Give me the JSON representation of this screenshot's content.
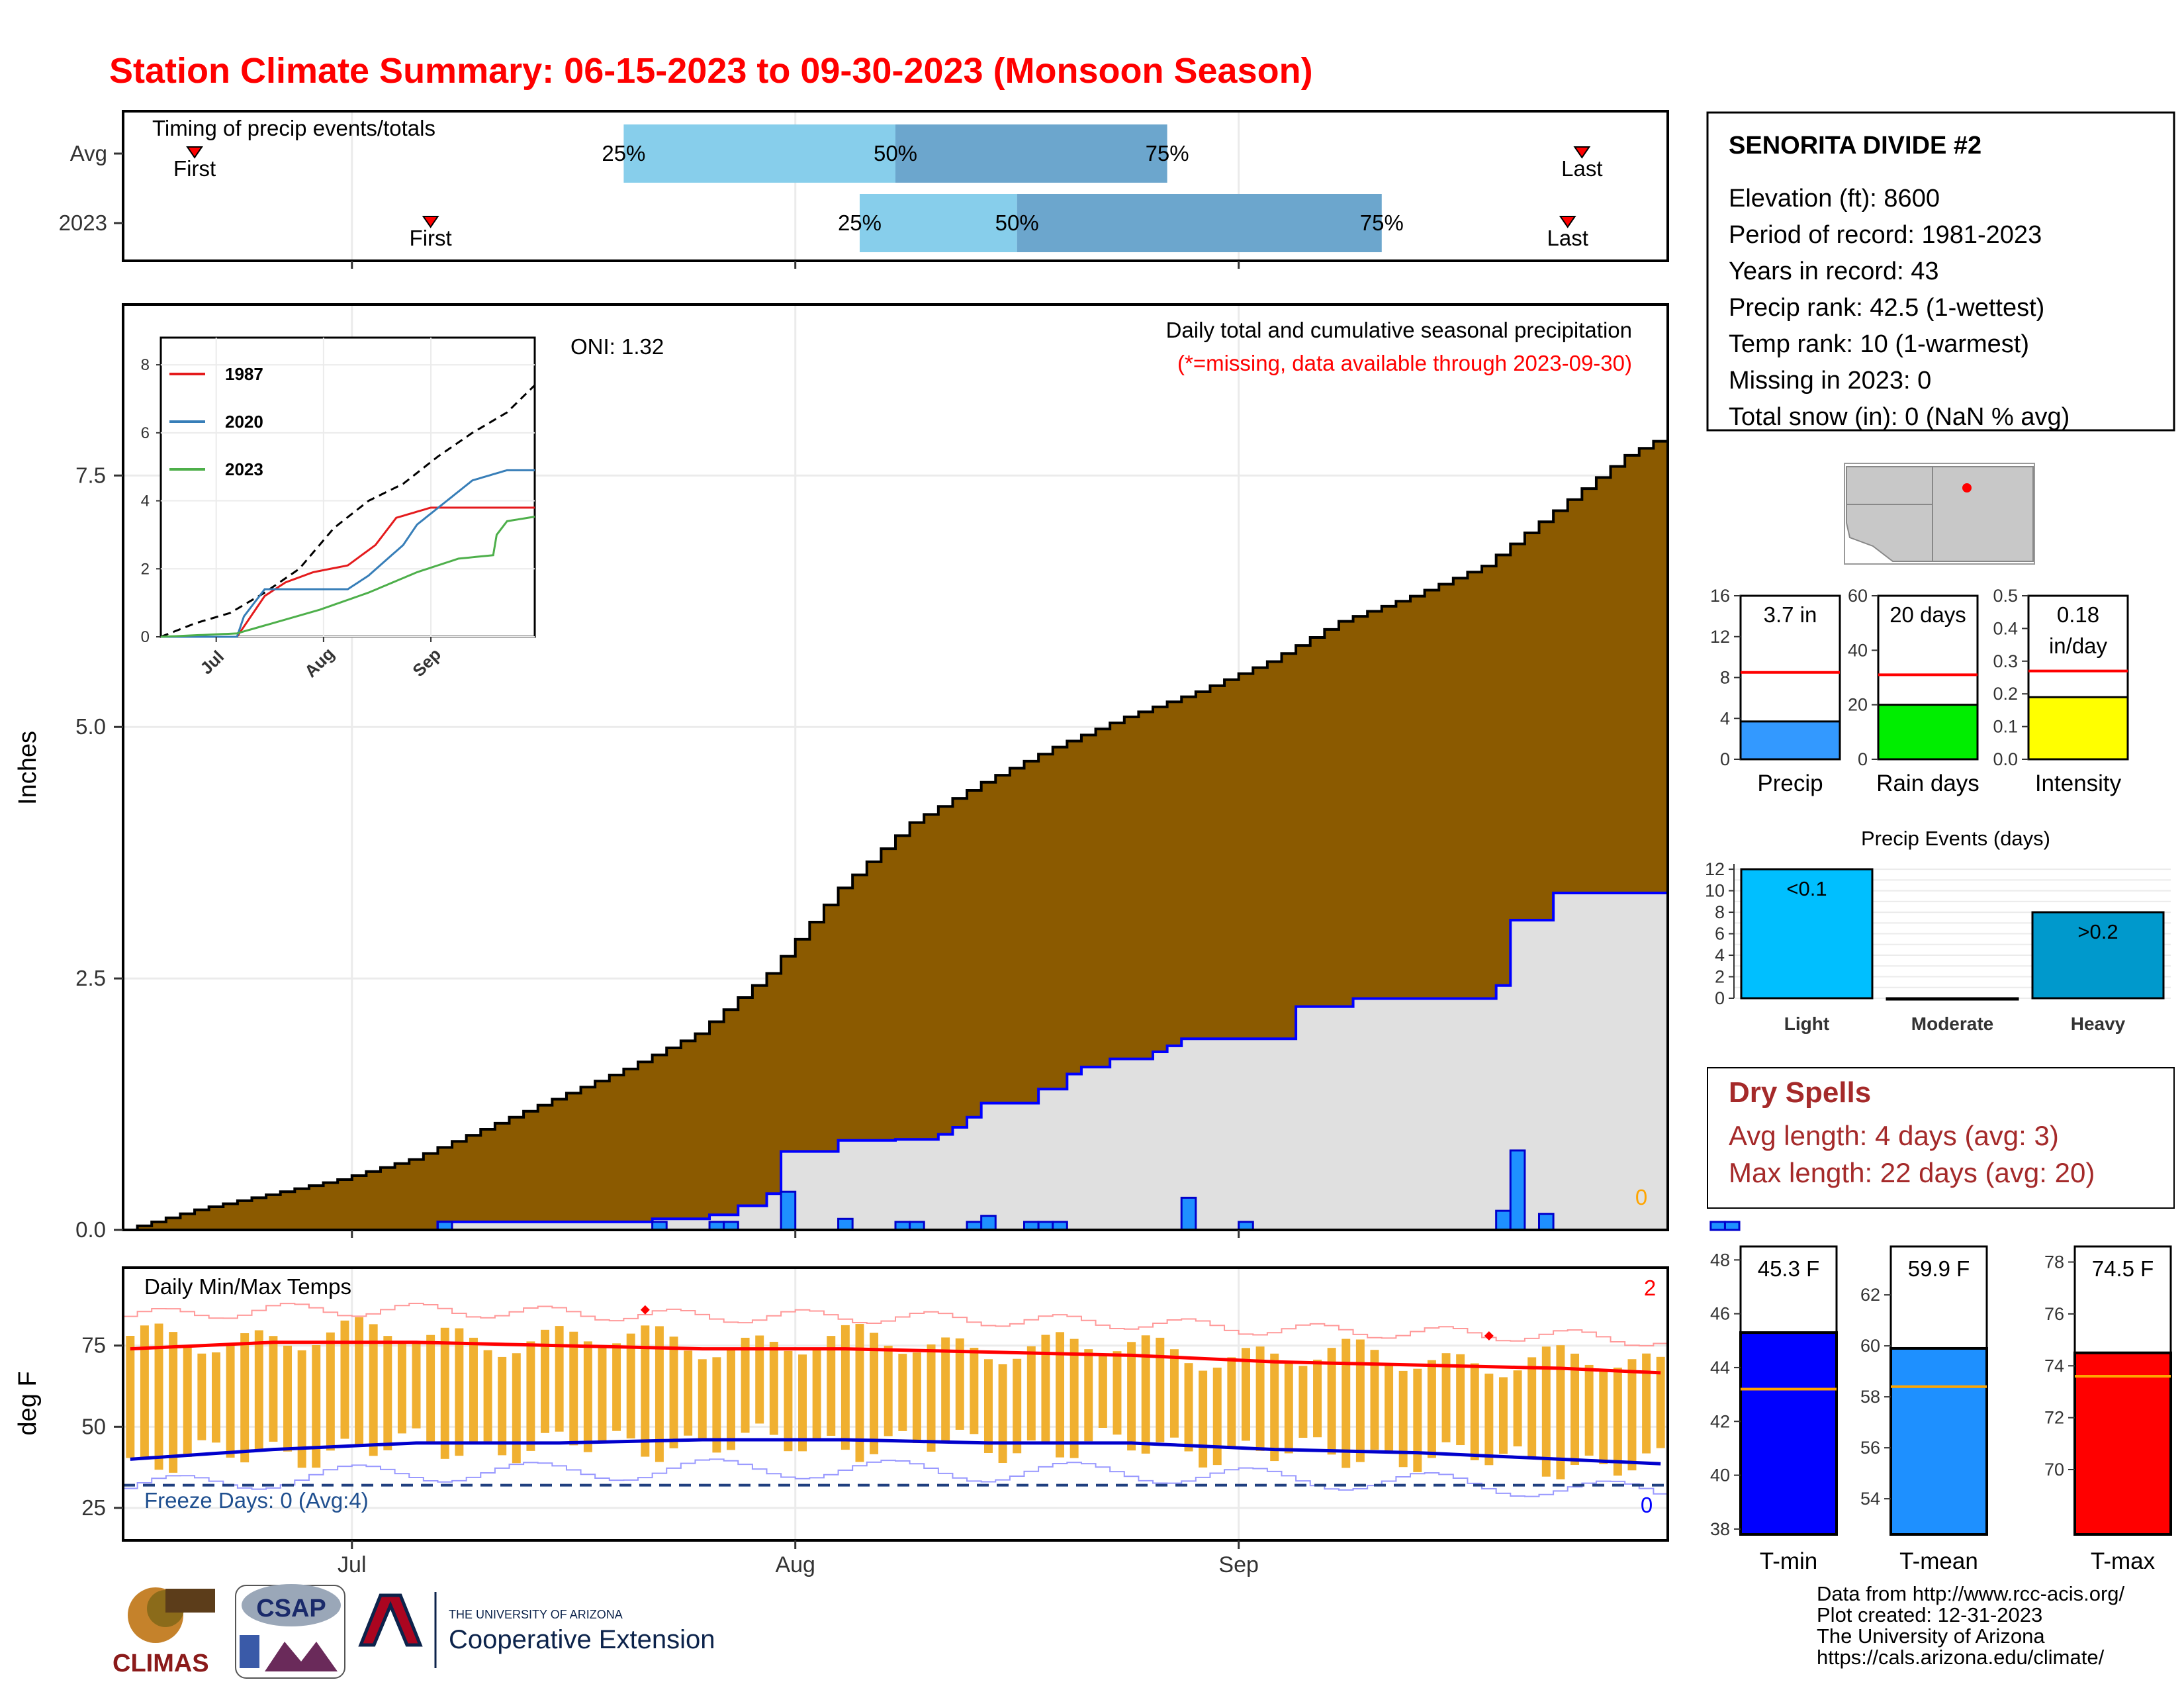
{
  "title": "Station Climate Summary: 06-15-2023 to 09-30-2023 (Monsoon Season)",
  "timing_panel": {
    "label": "Timing of precip events/totals",
    "rows": [
      {
        "name": "Avg",
        "first_label": "First",
        "last_label": "Last",
        "p25": "25%",
        "p50": "50%",
        "p75": "75%",
        "first_day": 5,
        "last_day": 102,
        "p25_day": 35,
        "p50_day": 54,
        "p75_day": 73
      },
      {
        "name": "2023",
        "first_label": "First",
        "last_label": "Last",
        "p25": "25%",
        "p50": "50%",
        "p75": "75%",
        "first_day": 21.5,
        "last_day": 101,
        "p25_day": 51.5,
        "p50_day": 62.5,
        "p75_day": 88
      }
    ]
  },
  "precip_panel": {
    "ylabel": "Inches",
    "annotation_title": "Daily total and cumulative seasonal precipitation",
    "annotation_missing": "(*=missing, data available through 2023-09-30)",
    "oni": "ONI: 1.32",
    "missing_count": "0",
    "yticks": [
      "0.0",
      "2.5",
      "5.0",
      "7.5"
    ]
  },
  "inset": {
    "yticks": [
      "0",
      "2",
      "4",
      "6",
      "8"
    ],
    "xticks": [
      "Jul",
      "Aug",
      "Sep"
    ],
    "legend": [
      {
        "label": "1987",
        "color": "#e41a1c"
      },
      {
        "label": "2020",
        "color": "#377eb8"
      },
      {
        "label": "2023",
        "color": "#4daf4a"
      }
    ]
  },
  "temp_panel": {
    "ylabel": "deg F",
    "label": "Daily Min/Max Temps",
    "freeze_days": "Freeze Days: 0 (Avg:4)",
    "record_high_count": "2",
    "record_low_count": "0",
    "yticks": [
      "25",
      "50",
      "75"
    ]
  },
  "xaxis": {
    "ticks": [
      "Jul",
      "Aug",
      "Sep"
    ]
  },
  "station": {
    "name": "SENORITA DIVIDE #2",
    "lines": [
      "Elevation (ft): 8600",
      "Period of record: 1981-2023",
      "Years in record: 43",
      "Precip rank: 42.5 (1-wettest)",
      "Temp rank: 10 (1-warmest)",
      "Missing in 2023: 0",
      "Total snow (in): 0 (NaN % avg)"
    ]
  },
  "mini_bars": [
    {
      "label": "Precip",
      "value_text": "3.7 in",
      "value": 3.7,
      "avg": 8.5,
      "ymax": 16,
      "yticks": [
        "0",
        "4",
        "8",
        "12",
        "16"
      ],
      "color": "#3399ff"
    },
    {
      "label": "Rain days",
      "value_text": "20 days",
      "value": 20,
      "avg": 31,
      "ymax": 60,
      "yticks": [
        "0",
        "20",
        "40",
        "60"
      ],
      "color": "#00ee00"
    },
    {
      "label": "Intensity",
      "value_text": "0.18",
      "value_text2": "in/day",
      "value": 0.19,
      "avg": 0.27,
      "ymax": 0.5,
      "yticks": [
        "0.0",
        "0.1",
        "0.2",
        "0.3",
        "0.4",
        "0.5"
      ],
      "color": "#ffff00"
    }
  ],
  "precip_events": {
    "title": "Precip Events (days)",
    "categories": [
      "Light",
      "Moderate",
      "Heavy"
    ],
    "bar_labels": [
      "<0.1",
      "",
      ">0.2"
    ],
    "values": [
      12,
      0,
      8
    ],
    "yticks": [
      "0",
      "2",
      "4",
      "6",
      "8",
      "10",
      "12"
    ],
    "colors": [
      "#00bfff",
      "#1e90ff",
      "#0099cc"
    ]
  },
  "dry_spells": {
    "title": "Dry Spells",
    "avg_length": "Avg length: 4 days (avg: 3)",
    "max_length": "Max length: 22 days (avg: 20)"
  },
  "temp_bars": [
    {
      "label": "T-min",
      "value_text": "45.3 F",
      "value": 45.3,
      "avg": 43.2,
      "ymin": 37.8,
      "ymax": 48.5,
      "yticks": [
        "38",
        "40",
        "42",
        "44",
        "46",
        "48"
      ],
      "color": "#0000ff"
    },
    {
      "label": "T-mean",
      "value_text": "59.9 F",
      "value": 59.9,
      "avg": 58.4,
      "ymin": 52.6,
      "ymax": 63.9,
      "yticks": [
        "54",
        "56",
        "58",
        "60",
        "62"
      ],
      "color": "#1e90ff"
    },
    {
      "label": "T-max",
      "value_text": "74.5 F",
      "value": 74.5,
      "avg": 73.6,
      "ymin": 67.5,
      "ymax": 78.6,
      "yticks": [
        "70",
        "72",
        "74",
        "76",
        "78"
      ],
      "color": "#ff0000"
    }
  ],
  "credits": [
    "Data from http://www.rcc-acis.org/",
    "Plot created: 12-31-2023",
    "The University of Arizona",
    "https://cals.arizona.edu/climate/"
  ],
  "logos": {
    "climas": "CLIMAS",
    "csap": "CSAP",
    "ua_line1": "THE UNIVERSITY OF ARIZONA",
    "ua_line2": "Cooperative Extension"
  },
  "chart_data": {
    "type": "area",
    "title": "Station Climate Summary: 06-15-2023 to 09-30-2023 (Monsoon Season)",
    "ylabel": "Inches",
    "x_start": "2023-06-15",
    "x_end": "2023-09-30",
    "ylim": [
      0,
      9.2
    ],
    "series": [
      {
        "name": "cumulative_avg",
        "knots": [
          [
            0,
            0
          ],
          [
            5,
            0.2
          ],
          [
            10,
            0.35
          ],
          [
            15,
            0.5
          ],
          [
            20,
            0.7
          ],
          [
            25,
            1.0
          ],
          [
            30,
            1.3
          ],
          [
            35,
            1.6
          ],
          [
            40,
            1.95
          ],
          [
            45,
            2.55
          ],
          [
            50,
            3.4
          ],
          [
            55,
            4.05
          ],
          [
            60,
            4.45
          ],
          [
            65,
            4.8
          ],
          [
            70,
            5.1
          ],
          [
            75,
            5.35
          ],
          [
            80,
            5.65
          ],
          [
            85,
            6.05
          ],
          [
            90,
            6.3
          ],
          [
            95,
            6.6
          ],
          [
            100,
            7.15
          ],
          [
            105,
            7.7
          ],
          [
            110,
            8.05
          ],
          [
            115,
            8.3
          ],
          [
            117,
            8.4
          ]
        ]
      },
      {
        "name": "cumulative_2023",
        "steps": [
          [
            0,
            0
          ],
          [
            22,
            0.08
          ],
          [
            37,
            0.11
          ],
          [
            41,
            0.15
          ],
          [
            43,
            0.24
          ],
          [
            45,
            0.36
          ],
          [
            46,
            0.78
          ],
          [
            50,
            0.89
          ],
          [
            54,
            0.9
          ],
          [
            57,
            0.95
          ],
          [
            58,
            1.02
          ],
          [
            59,
            1.12
          ],
          [
            60,
            1.26
          ],
          [
            64,
            1.4
          ],
          [
            66,
            1.55
          ],
          [
            67,
            1.62
          ],
          [
            69,
            1.7
          ],
          [
            72,
            1.77
          ],
          [
            73,
            1.83
          ],
          [
            74,
            1.9
          ],
          [
            82,
            2.22
          ],
          [
            86,
            2.3
          ],
          [
            96,
            2.43
          ],
          [
            97,
            3.08
          ],
          [
            100,
            3.35
          ],
          [
            111,
            3.46
          ],
          [
            112,
            3.58
          ],
          [
            117,
            3.7
          ]
        ]
      }
    ],
    "daily_bars": [
      [
        22,
        0.08
      ],
      [
        37,
        0.08
      ],
      [
        41,
        0.08
      ],
      [
        42,
        0.08
      ],
      [
        46,
        0.38
      ],
      [
        50,
        0.11
      ],
      [
        54,
        0.08
      ],
      [
        55,
        0.08
      ],
      [
        59,
        0.08
      ],
      [
        60,
        0.14
      ],
      [
        63,
        0.08
      ],
      [
        64,
        0.08
      ],
      [
        65,
        0.08
      ],
      [
        74,
        0.32
      ],
      [
        78,
        0.08
      ],
      [
        96,
        0.19
      ],
      [
        97,
        0.79
      ],
      [
        99,
        0.16
      ],
      [
        111,
        0.08
      ],
      [
        112,
        0.08
      ]
    ],
    "temp_series": {
      "ylim": [
        15,
        99
      ],
      "freeze_line": 32,
      "avg_max_knots": [
        [
          0,
          74
        ],
        [
          10,
          76
        ],
        [
          20,
          76
        ],
        [
          30,
          75
        ],
        [
          40,
          74
        ],
        [
          50,
          74
        ],
        [
          60,
          73
        ],
        [
          70,
          72
        ],
        [
          80,
          70
        ],
        [
          90,
          69
        ],
        [
          100,
          68
        ],
        [
          110,
          66
        ],
        [
          117,
          65
        ]
      ],
      "avg_min_knots": [
        [
          0,
          40
        ],
        [
          10,
          43
        ],
        [
          20,
          45
        ],
        [
          30,
          45
        ],
        [
          40,
          46
        ],
        [
          50,
          46
        ],
        [
          60,
          45
        ],
        [
          70,
          45
        ],
        [
          80,
          43
        ],
        [
          90,
          42
        ],
        [
          100,
          40
        ],
        [
          110,
          38
        ],
        [
          117,
          36
        ]
      ],
      "record_high_points": [
        [
          36,
          86
        ],
        [
          95,
          78
        ]
      ]
    },
    "inset": {
      "ylim": [
        0,
        8.8
      ],
      "series": [
        {
          "name": "avg",
          "knots": [
            [
              0,
              0
            ],
            [
              10,
              0.4
            ],
            [
              20,
              0.7
            ],
            [
              30,
              1.3
            ],
            [
              40,
              2
            ],
            [
              50,
              3.2
            ],
            [
              60,
              4
            ],
            [
              70,
              4.5
            ],
            [
              80,
              5.3
            ],
            [
              90,
              6
            ],
            [
              100,
              6.6
            ],
            [
              110,
              7.6
            ],
            [
              117,
              8.4
            ]
          ]
        },
        {
          "name": "1987",
          "knots": [
            [
              0,
              0
            ],
            [
              22,
              0
            ],
            [
              26,
              0.6
            ],
            [
              30,
              1.2
            ],
            [
              36,
              1.6
            ],
            [
              44,
              1.9
            ],
            [
              54,
              2.1
            ],
            [
              62,
              2.7
            ],
            [
              68,
              3.5
            ],
            [
              78,
              3.8
            ],
            [
              86,
              3.8
            ],
            [
              94,
              3.8
            ],
            [
              117,
              3.8
            ]
          ]
        },
        {
          "name": "2020",
          "knots": [
            [
              0,
              0
            ],
            [
              22,
              0
            ],
            [
              24,
              0.6
            ],
            [
              30,
              1.4
            ],
            [
              40,
              1.4
            ],
            [
              54,
              1.4
            ],
            [
              60,
              1.8
            ],
            [
              70,
              2.7
            ],
            [
              74,
              3.3
            ],
            [
              90,
              4.6
            ],
            [
              100,
              4.9
            ],
            [
              117,
              4.9
            ]
          ]
        },
        {
          "name": "2023",
          "knots": [
            [
              0,
              0
            ],
            [
              22,
              0.1
            ],
            [
              46,
              0.8
            ],
            [
              60,
              1.3
            ],
            [
              74,
              1.9
            ],
            [
              86,
              2.3
            ],
            [
              96,
              2.4
            ],
            [
              97,
              3
            ],
            [
              100,
              3.4
            ],
            [
              112,
              3.6
            ],
            [
              117,
              3.7
            ]
          ]
        }
      ]
    }
  }
}
